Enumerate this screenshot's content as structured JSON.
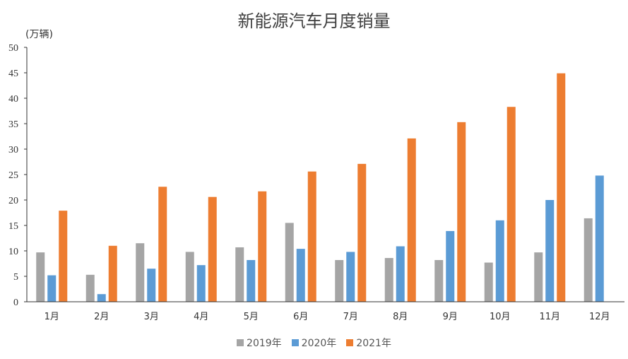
{
  "chart_data": {
    "type": "bar",
    "title": "新能源汽车月度销量",
    "ylabel": "(万辆)",
    "xlabel": "",
    "ylim": [
      0,
      50
    ],
    "yticks": [
      0,
      5,
      10,
      15,
      20,
      25,
      30,
      35,
      40,
      45,
      50
    ],
    "categories": [
      "1月",
      "2月",
      "3月",
      "4月",
      "5月",
      "6月",
      "7月",
      "8月",
      "9月",
      "10月",
      "11月",
      "12月"
    ],
    "series": [
      {
        "name": "2019年",
        "color": "#a5a5a5",
        "values": [
          9.7,
          5.3,
          11.5,
          9.8,
          10.7,
          15.5,
          8.2,
          8.6,
          8.2,
          7.7,
          9.7,
          16.4
        ]
      },
      {
        "name": "2020年",
        "color": "#5b9bd5",
        "values": [
          5.2,
          1.5,
          6.5,
          7.2,
          8.2,
          10.4,
          9.8,
          10.9,
          13.9,
          16.0,
          20.0,
          24.8
        ]
      },
      {
        "name": "2021年",
        "color": "#ed7d31",
        "values": [
          17.9,
          11.0,
          22.6,
          20.6,
          21.7,
          25.6,
          27.1,
          32.1,
          35.3,
          38.3,
          44.9,
          null
        ]
      }
    ],
    "legend_position": "bottom",
    "grid": false
  }
}
